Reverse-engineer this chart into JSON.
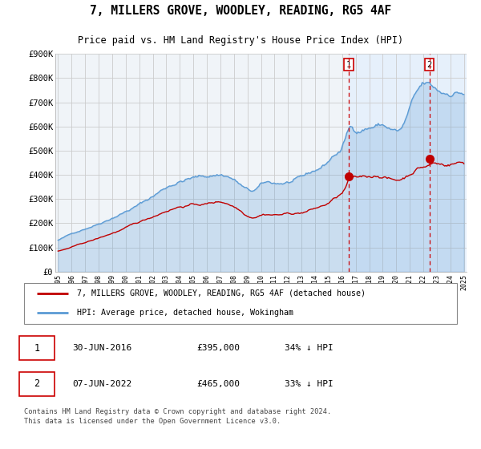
{
  "title": "7, MILLERS GROVE, WOODLEY, READING, RG5 4AF",
  "subtitle": "Price paid vs. HM Land Registry's House Price Index (HPI)",
  "footer": "Contains HM Land Registry data © Crown copyright and database right 2024.\nThis data is licensed under the Open Government Licence v3.0.",
  "legend_line1": "7, MILLERS GROVE, WOODLEY, READING, RG5 4AF (detached house)",
  "legend_line2": "HPI: Average price, detached house, Wokingham",
  "transaction1_label": "1",
  "transaction1_date": "30-JUN-2016",
  "transaction1_price": "£395,000",
  "transaction1_hpi": "34% ↓ HPI",
  "transaction2_label": "2",
  "transaction2_date": "07-JUN-2022",
  "transaction2_price": "£465,000",
  "transaction2_hpi": "33% ↓ HPI",
  "hpi_color": "#5b9bd5",
  "hpi_fill_color": "#ddeeff",
  "price_color": "#c00000",
  "vline_color": "#cc0000",
  "grid_color": "#cccccc",
  "background_color": "#ffffff",
  "plot_bg_color": "#f0f4f8",
  "ylim": [
    0,
    900000
  ],
  "yticks": [
    0,
    100000,
    200000,
    300000,
    400000,
    500000,
    600000,
    700000,
    800000,
    900000
  ],
  "x_start_year": 1995,
  "x_end_year": 2025,
  "transaction1_x": 2016.5,
  "transaction2_x": 2022.45
}
